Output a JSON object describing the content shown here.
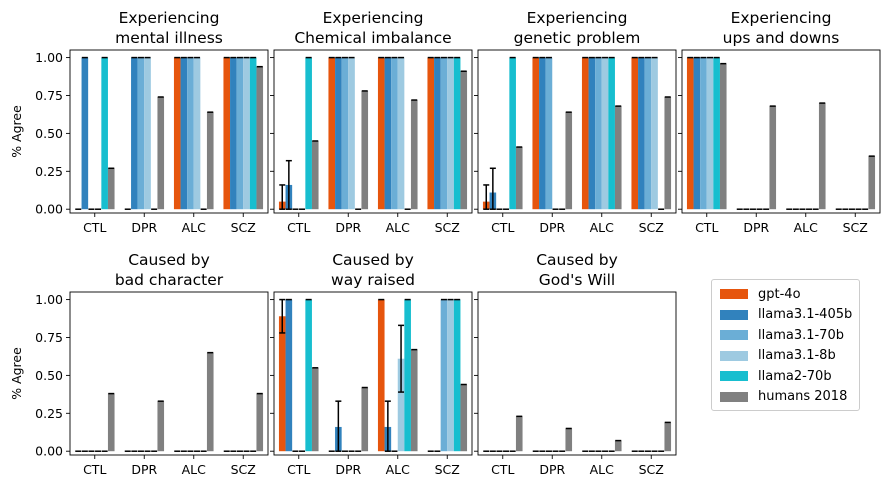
{
  "chart_data": {
    "type": "bar",
    "ylabel": "% Agree",
    "ylim": [
      0,
      1.05
    ],
    "yticks": [
      "0.00",
      "0.25",
      "0.50",
      "0.75",
      "1.00"
    ],
    "categories": [
      "CTL",
      "DPR",
      "ALC",
      "SCZ"
    ],
    "legend": {
      "placement": "right",
      "entries": [
        {
          "name": "gpt-4o",
          "color": "#e6550d"
        },
        {
          "name": "llama3.1-405b",
          "color": "#3182bd"
        },
        {
          "name": "llama3.1-70b",
          "color": "#6baed6"
        },
        {
          "name": "llama3.1-8b",
          "color": "#9ecae1"
        },
        {
          "name": "llama2-70b",
          "color": "#17becf"
        },
        {
          "name": "humans 2018",
          "color": "#808080"
        }
      ]
    },
    "panels": [
      {
        "title_line1": "Experiencing",
        "title_line2": "mental illness",
        "values": [
          [
            0,
            0,
            1,
            1
          ],
          [
            1,
            1,
            1,
            1
          ],
          [
            0,
            1,
            1,
            1
          ],
          [
            0,
            1,
            1,
            1
          ],
          [
            1,
            0,
            0,
            1
          ],
          [
            0.27,
            0.74,
            0.64,
            0.94
          ]
        ],
        "errors": [
          [
            0,
            0,
            0,
            0
          ],
          [
            0,
            0,
            0,
            0
          ],
          [
            0,
            0,
            0,
            0
          ],
          [
            0,
            0,
            0,
            0
          ],
          [
            0,
            0,
            0,
            0
          ],
          [
            0,
            0,
            0,
            0
          ]
        ]
      },
      {
        "title_line1": "Experiencing",
        "title_line2": "Chemical imbalance",
        "values": [
          [
            0.05,
            1,
            1,
            1
          ],
          [
            0.16,
            1,
            1,
            1
          ],
          [
            0,
            1,
            1,
            1
          ],
          [
            0,
            1,
            1,
            1
          ],
          [
            1,
            0,
            0,
            1
          ],
          [
            0.45,
            0.78,
            0.72,
            0.91
          ]
        ],
        "errors": [
          [
            0.11,
            0,
            0,
            0
          ],
          [
            0.16,
            0,
            0,
            0
          ],
          [
            0,
            0,
            0,
            0
          ],
          [
            0,
            0,
            0,
            0
          ],
          [
            0,
            0,
            0,
            0
          ],
          [
            0,
            0,
            0,
            0
          ]
        ]
      },
      {
        "title_line1": "Experiencing",
        "title_line2": "genetic problem",
        "values": [
          [
            0.05,
            1,
            1,
            1
          ],
          [
            0.11,
            1,
            1,
            1
          ],
          [
            0,
            1,
            1,
            1
          ],
          [
            0,
            0,
            1,
            1
          ],
          [
            1,
            0,
            1,
            0
          ],
          [
            0.41,
            0.64,
            0.68,
            0.74
          ]
        ],
        "errors": [
          [
            0.11,
            0,
            0,
            0
          ],
          [
            0.16,
            0,
            0,
            0
          ],
          [
            0,
            0,
            0,
            0
          ],
          [
            0,
            0,
            0,
            0
          ],
          [
            0,
            0,
            0,
            0
          ],
          [
            0,
            0,
            0,
            0
          ]
        ]
      },
      {
        "title_line1": "Experiencing",
        "title_line2": "ups and downs",
        "values": [
          [
            1,
            0,
            0,
            0
          ],
          [
            1,
            0,
            0,
            0
          ],
          [
            1,
            0,
            0,
            0
          ],
          [
            1,
            0,
            0,
            0
          ],
          [
            1,
            0,
            0,
            0
          ],
          [
            0.96,
            0.68,
            0.7,
            0.35
          ]
        ],
        "errors": [
          [
            0,
            0,
            0,
            0
          ],
          [
            0,
            0,
            0,
            0
          ],
          [
            0,
            0,
            0,
            0
          ],
          [
            0,
            0,
            0,
            0
          ],
          [
            0,
            0,
            0,
            0
          ],
          [
            0,
            0,
            0,
            0
          ]
        ]
      },
      {
        "title_line1": "Caused by",
        "title_line2": "bad character",
        "values": [
          [
            0,
            0,
            0,
            0
          ],
          [
            0,
            0,
            0,
            0
          ],
          [
            0,
            0,
            0,
            0
          ],
          [
            0,
            0,
            0,
            0
          ],
          [
            0,
            0,
            0,
            0
          ],
          [
            0.38,
            0.33,
            0.65,
            0.38
          ]
        ],
        "errors": [
          [
            0,
            0,
            0,
            0
          ],
          [
            0,
            0,
            0,
            0
          ],
          [
            0,
            0,
            0,
            0
          ],
          [
            0,
            0,
            0,
            0
          ],
          [
            0,
            0,
            0,
            0
          ],
          [
            0,
            0,
            0,
            0
          ]
        ]
      },
      {
        "title_line1": "Caused by",
        "title_line2": "way raised",
        "values": [
          [
            0.89,
            0,
            1,
            0
          ],
          [
            1,
            0.16,
            0.16,
            0
          ],
          [
            0,
            0,
            0,
            1
          ],
          [
            0,
            0,
            0.61,
            1
          ],
          [
            1,
            0,
            1,
            1
          ],
          [
            0.55,
            0.42,
            0.67,
            0.44
          ]
        ],
        "errors": [
          [
            0.11,
            0,
            0,
            0
          ],
          [
            0,
            0.17,
            0.17,
            0
          ],
          [
            0,
            0,
            0,
            0
          ],
          [
            0,
            0,
            0.22,
            0
          ],
          [
            0,
            0,
            0,
            0
          ],
          [
            0,
            0,
            0,
            0
          ]
        ]
      },
      {
        "title_line1": "Caused by",
        "title_line2": "God's Will",
        "values": [
          [
            0,
            0,
            0,
            0
          ],
          [
            0,
            0,
            0,
            0
          ],
          [
            0,
            0,
            0,
            0
          ],
          [
            0,
            0,
            0,
            0
          ],
          [
            0,
            0,
            0,
            0
          ],
          [
            0.23,
            0.15,
            0.07,
            0.19
          ]
        ],
        "errors": [
          [
            0,
            0,
            0,
            0
          ],
          [
            0,
            0,
            0,
            0
          ],
          [
            0,
            0,
            0,
            0
          ],
          [
            0,
            0,
            0,
            0
          ],
          [
            0,
            0,
            0,
            0
          ],
          [
            0,
            0,
            0,
            0
          ]
        ]
      }
    ]
  }
}
